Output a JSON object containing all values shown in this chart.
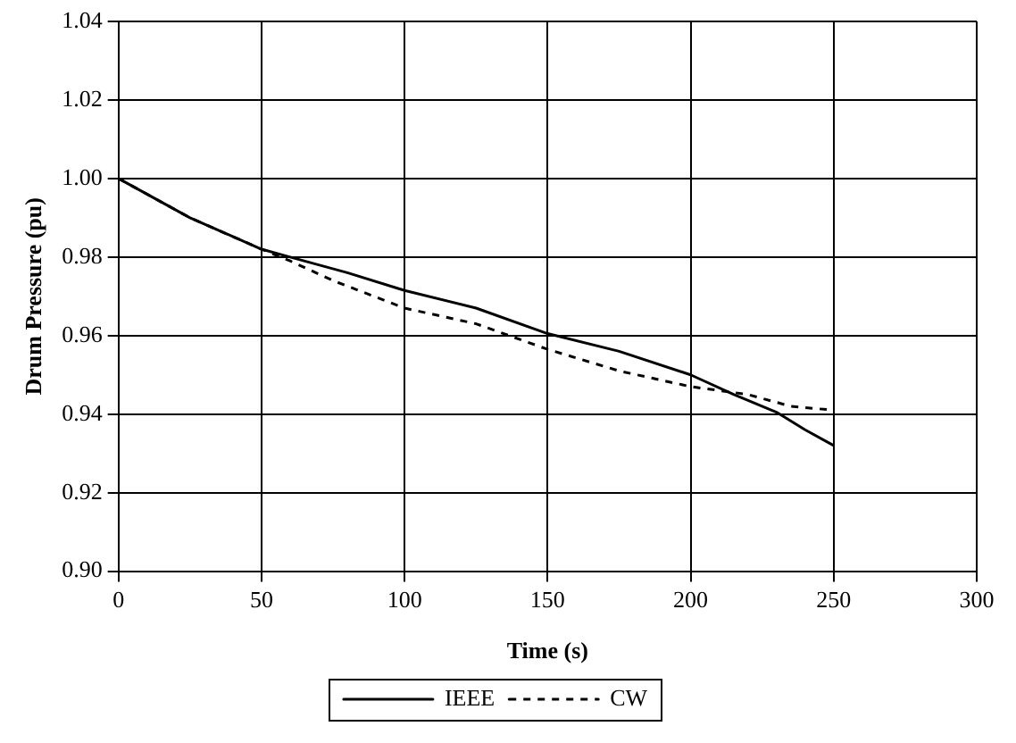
{
  "chart_data": {
    "type": "line",
    "xlabel": "Time (s)",
    "ylabel": "Drum Pressure (pu)",
    "xlim": [
      0,
      300
    ],
    "xticks": [
      0,
      50,
      100,
      150,
      200,
      250,
      300
    ],
    "ylim": [
      0.9,
      1.04
    ],
    "yticks": [
      {
        "value": 0.9,
        "label": "0.90"
      },
      {
        "value": 0.92,
        "label": "0.92"
      },
      {
        "value": 0.94,
        "label": "0.94"
      },
      {
        "value": 0.96,
        "label": "0.96"
      },
      {
        "value": 0.98,
        "label": "0.98"
      },
      {
        "value": 1.0,
        "label": "1.00"
      },
      {
        "value": 1.02,
        "label": "1.02"
      },
      {
        "value": 1.04,
        "label": "1.04"
      }
    ],
    "grid": true,
    "legend": "bottom",
    "marker": "none",
    "series": [
      {
        "name": "IEEE",
        "color": "#000000",
        "line_style": "solid",
        "x": [
          0,
          25,
          50,
          60,
          80,
          100,
          125,
          150,
          175,
          200,
          215,
          230,
          240,
          250
        ],
        "values": [
          1.0,
          0.99,
          0.982,
          0.98,
          0.976,
          0.9715,
          0.967,
          0.9605,
          0.956,
          0.95,
          0.945,
          0.9405,
          0.936,
          0.932
        ]
      },
      {
        "name": "CW",
        "color": "#000000",
        "line_style": "dashed",
        "x": [
          0,
          25,
          50,
          60,
          75,
          100,
          125,
          150,
          175,
          200,
          220,
          235,
          250
        ],
        "values": [
          1.0,
          0.99,
          0.982,
          0.979,
          0.974,
          0.967,
          0.963,
          0.9565,
          0.951,
          0.947,
          0.945,
          0.942,
          0.941
        ]
      }
    ]
  }
}
